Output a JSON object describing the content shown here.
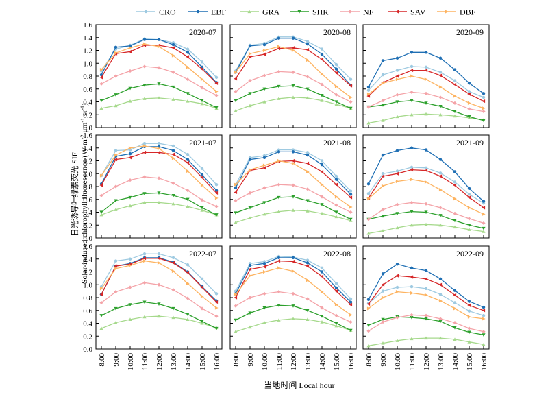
{
  "chart_data": {
    "type": "line",
    "ylabel_cn": "日光诱导叶绿素荧光 SIF",
    "ylabel_en": "Solar-induced chlorophyll fluorescence/(W m",
    "ylabel_sup1": "-2",
    "ylabel_mid": " μm",
    "ylabel_sup2": "-1",
    "ylabel_mid2": " sr",
    "ylabel_sup3": "-1",
    "ylabel_end": ")",
    "xlabel": "当地时间 Local hour",
    "x": [
      "8:00",
      "9:00",
      "10:00",
      "11:00",
      "12:00",
      "13:00",
      "14:00",
      "15:00",
      "16:00"
    ],
    "yticks": [
      "0.0",
      "0.2",
      "0.4",
      "0.6",
      "0.8",
      "1.0",
      "1.2",
      "1.4",
      "1.6"
    ],
    "ylim": [
      0,
      1.6
    ],
    "legend": [
      {
        "name": "CRO",
        "color": "#9ecae1",
        "marker": "circle"
      },
      {
        "name": "EBF",
        "color": "#1f6fb4",
        "marker": "circle"
      },
      {
        "name": "GRA",
        "color": "#a6d98c",
        "marker": "triangle-up"
      },
      {
        "name": "SHR",
        "color": "#2ca02c",
        "marker": "triangle-down"
      },
      {
        "name": "NF",
        "color": "#f4a3a8",
        "marker": "diamond"
      },
      {
        "name": "SAV",
        "color": "#d62728",
        "marker": "tri-left"
      },
      {
        "name": "DBF",
        "color": "#fdb462",
        "marker": "tri-right"
      }
    ],
    "panels": [
      {
        "title": "2020-07",
        "series": {
          "CRO": [
            0.88,
            1.22,
            1.28,
            1.38,
            1.37,
            1.32,
            1.22,
            1.02,
            0.78
          ],
          "EBF": [
            0.82,
            1.25,
            1.27,
            1.37,
            1.37,
            1.29,
            1.17,
            0.94,
            0.7
          ],
          "GRA": [
            0.3,
            0.34,
            0.41,
            0.45,
            0.46,
            0.44,
            0.41,
            0.37,
            0.3
          ],
          "SHR": [
            0.42,
            0.51,
            0.61,
            0.66,
            0.68,
            0.63,
            0.53,
            0.42,
            0.31
          ],
          "NF": [
            0.68,
            0.8,
            0.88,
            0.95,
            0.93,
            0.86,
            0.75,
            0.62,
            0.5
          ],
          "SAV": [
            0.78,
            1.15,
            1.18,
            1.28,
            1.28,
            1.24,
            1.1,
            0.91,
            0.69
          ],
          "DBF": [
            0.9,
            1.16,
            1.24,
            1.3,
            1.26,
            1.12,
            0.94,
            0.75,
            0.56
          ]
        }
      },
      {
        "title": "2020-08",
        "series": {
          "CRO": [
            0.88,
            1.28,
            1.31,
            1.41,
            1.41,
            1.34,
            1.22,
            0.98,
            0.75
          ],
          "EBF": [
            0.86,
            1.27,
            1.29,
            1.39,
            1.39,
            1.3,
            1.14,
            0.91,
            0.66
          ],
          "GRA": [
            0.26,
            0.34,
            0.4,
            0.45,
            0.47,
            0.46,
            0.42,
            0.36,
            0.3
          ],
          "SHR": [
            0.42,
            0.53,
            0.6,
            0.64,
            0.65,
            0.6,
            0.5,
            0.4,
            0.3
          ],
          "NF": [
            0.56,
            0.73,
            0.81,
            0.87,
            0.86,
            0.79,
            0.67,
            0.51,
            0.4
          ],
          "SAV": [
            0.76,
            1.1,
            1.14,
            1.23,
            1.24,
            1.21,
            1.06,
            0.85,
            0.65
          ],
          "DBF": [
            0.86,
            1.15,
            1.2,
            1.26,
            1.2,
            1.05,
            0.83,
            0.64,
            0.47
          ]
        }
      },
      {
        "title": "2020-09",
        "series": {
          "CRO": [
            0.58,
            0.82,
            0.89,
            0.95,
            0.94,
            0.86,
            0.73,
            0.56,
            0.47
          ],
          "EBF": [
            0.63,
            1.04,
            1.08,
            1.17,
            1.17,
            1.08,
            0.9,
            0.69,
            0.53
          ],
          "GRA": [
            0.07,
            0.11,
            0.17,
            0.2,
            0.21,
            0.2,
            0.18,
            0.15,
            0.12
          ],
          "SHR": [
            0.32,
            0.35,
            0.4,
            0.42,
            0.38,
            0.33,
            0.25,
            0.17,
            0.11
          ],
          "NF": [
            0.32,
            0.42,
            0.51,
            0.55,
            0.53,
            0.47,
            0.38,
            0.29,
            0.25
          ],
          "SAV": [
            0.49,
            0.7,
            0.8,
            0.89,
            0.89,
            0.81,
            0.67,
            0.52,
            0.41
          ],
          "DBF": [
            0.52,
            0.69,
            0.75,
            0.8,
            0.75,
            0.63,
            0.49,
            0.38,
            0.3
          ]
        }
      },
      {
        "title": "2021-07",
        "series": {
          "CRO": [
            0.97,
            1.36,
            1.37,
            1.47,
            1.47,
            1.43,
            1.3,
            1.08,
            0.83
          ],
          "EBF": [
            0.84,
            1.27,
            1.31,
            1.42,
            1.42,
            1.36,
            1.22,
            0.98,
            0.74
          ],
          "GRA": [
            0.36,
            0.44,
            0.5,
            0.55,
            0.55,
            0.53,
            0.49,
            0.43,
            0.36
          ],
          "SHR": [
            0.4,
            0.58,
            0.63,
            0.69,
            0.7,
            0.66,
            0.6,
            0.47,
            0.36
          ],
          "NF": [
            0.66,
            0.8,
            0.9,
            0.95,
            0.93,
            0.85,
            0.74,
            0.59,
            0.49
          ],
          "SAV": [
            0.82,
            1.22,
            1.25,
            1.33,
            1.33,
            1.3,
            1.17,
            0.94,
            0.7
          ],
          "DBF": [
            0.97,
            1.29,
            1.4,
            1.43,
            1.39,
            1.24,
            1.04,
            0.82,
            0.62
          ]
        }
      },
      {
        "title": "2021-08",
        "series": {
          "CRO": [
            0.83,
            1.25,
            1.28,
            1.37,
            1.37,
            1.33,
            1.2,
            0.96,
            0.73
          ],
          "EBF": [
            0.78,
            1.22,
            1.25,
            1.34,
            1.34,
            1.29,
            1.14,
            0.91,
            0.68
          ],
          "GRA": [
            0.24,
            0.31,
            0.37,
            0.41,
            0.43,
            0.42,
            0.38,
            0.33,
            0.27
          ],
          "SHR": [
            0.39,
            0.47,
            0.55,
            0.63,
            0.64,
            0.58,
            0.52,
            0.4,
            0.29
          ],
          "NF": [
            0.58,
            0.7,
            0.78,
            0.83,
            0.82,
            0.76,
            0.64,
            0.51,
            0.4
          ],
          "SAV": [
            0.71,
            1.05,
            1.09,
            1.19,
            1.2,
            1.16,
            1.03,
            0.83,
            0.63
          ],
          "DBF": [
            0.83,
            1.06,
            1.13,
            1.2,
            1.16,
            1.03,
            0.83,
            0.64,
            0.48
          ]
        }
      },
      {
        "title": "2021-09",
        "series": {
          "CRO": [
            0.69,
            1.0,
            1.04,
            1.1,
            1.09,
            1.01,
            0.87,
            0.68,
            0.54
          ],
          "EBF": [
            0.84,
            1.29,
            1.36,
            1.4,
            1.37,
            1.22,
            1.03,
            0.77,
            0.57
          ],
          "GRA": [
            0.07,
            0.11,
            0.16,
            0.2,
            0.21,
            0.2,
            0.17,
            0.13,
            0.1
          ],
          "SHR": [
            0.29,
            0.34,
            0.38,
            0.41,
            0.4,
            0.35,
            0.27,
            0.2,
            0.15
          ],
          "NF": [
            0.29,
            0.44,
            0.52,
            0.55,
            0.53,
            0.47,
            0.38,
            0.3,
            0.23
          ],
          "SAV": [
            0.62,
            0.96,
            1.0,
            1.06,
            1.05,
            0.96,
            0.82,
            0.63,
            0.47
          ],
          "DBF": [
            0.61,
            0.81,
            0.88,
            0.91,
            0.87,
            0.75,
            0.61,
            0.47,
            0.37
          ]
        }
      },
      {
        "title": "2022-07",
        "series": {
          "CRO": [
            0.97,
            1.37,
            1.4,
            1.48,
            1.48,
            1.42,
            1.31,
            1.09,
            0.86
          ],
          "EBF": [
            0.85,
            1.29,
            1.33,
            1.42,
            1.42,
            1.35,
            1.2,
            0.97,
            0.75
          ],
          "GRA": [
            0.32,
            0.41,
            0.46,
            0.5,
            0.51,
            0.49,
            0.46,
            0.4,
            0.33
          ],
          "SHR": [
            0.52,
            0.63,
            0.69,
            0.73,
            0.7,
            0.63,
            0.54,
            0.43,
            0.32
          ],
          "NF": [
            0.72,
            0.89,
            0.96,
            1.03,
            1.0,
            0.92,
            0.79,
            0.63,
            0.51
          ],
          "SAV": [
            0.85,
            1.29,
            1.32,
            1.41,
            1.41,
            1.34,
            1.19,
            0.96,
            0.73
          ],
          "DBF": [
            0.94,
            1.25,
            1.3,
            1.37,
            1.34,
            1.21,
            1.02,
            0.82,
            0.64
          ]
        }
      },
      {
        "title": "2022-08",
        "series": {
          "CRO": [
            0.9,
            1.33,
            1.36,
            1.44,
            1.43,
            1.38,
            1.26,
            1.02,
            0.78
          ],
          "EBF": [
            0.86,
            1.3,
            1.33,
            1.42,
            1.42,
            1.34,
            1.2,
            0.95,
            0.73
          ],
          "GRA": [
            0.27,
            0.34,
            0.41,
            0.45,
            0.47,
            0.46,
            0.42,
            0.36,
            0.29
          ],
          "SHR": [
            0.45,
            0.56,
            0.64,
            0.68,
            0.67,
            0.6,
            0.51,
            0.4,
            0.29
          ],
          "NF": [
            0.67,
            0.8,
            0.86,
            0.89,
            0.86,
            0.78,
            0.64,
            0.52,
            0.42
          ],
          "SAV": [
            0.8,
            1.24,
            1.28,
            1.37,
            1.36,
            1.29,
            1.13,
            0.9,
            0.69
          ],
          "DBF": [
            0.85,
            1.14,
            1.2,
            1.26,
            1.21,
            1.07,
            0.89,
            0.69,
            0.53
          ]
        }
      },
      {
        "title": "2022-09",
        "series": {
          "CRO": [
            0.71,
            0.9,
            0.96,
            0.97,
            0.94,
            0.85,
            0.72,
            0.59,
            0.52
          ],
          "EBF": [
            0.77,
            1.17,
            1.32,
            1.26,
            1.22,
            1.09,
            0.91,
            0.74,
            0.65
          ],
          "GRA": [
            0.05,
            0.09,
            0.13,
            0.16,
            0.17,
            0.17,
            0.15,
            0.11,
            0.07
          ],
          "SHR": [
            0.37,
            0.46,
            0.5,
            0.49,
            0.47,
            0.43,
            0.33,
            0.26,
            0.22
          ],
          "NF": [
            0.28,
            0.42,
            0.49,
            0.53,
            0.52,
            0.47,
            0.41,
            0.32,
            0.27
          ],
          "SAV": [
            0.7,
            1.0,
            1.14,
            1.12,
            1.09,
            1.0,
            0.84,
            0.68,
            0.6
          ],
          "DBF": [
            0.63,
            0.8,
            0.89,
            0.87,
            0.84,
            0.75,
            0.63,
            0.5,
            0.47
          ]
        }
      }
    ]
  }
}
